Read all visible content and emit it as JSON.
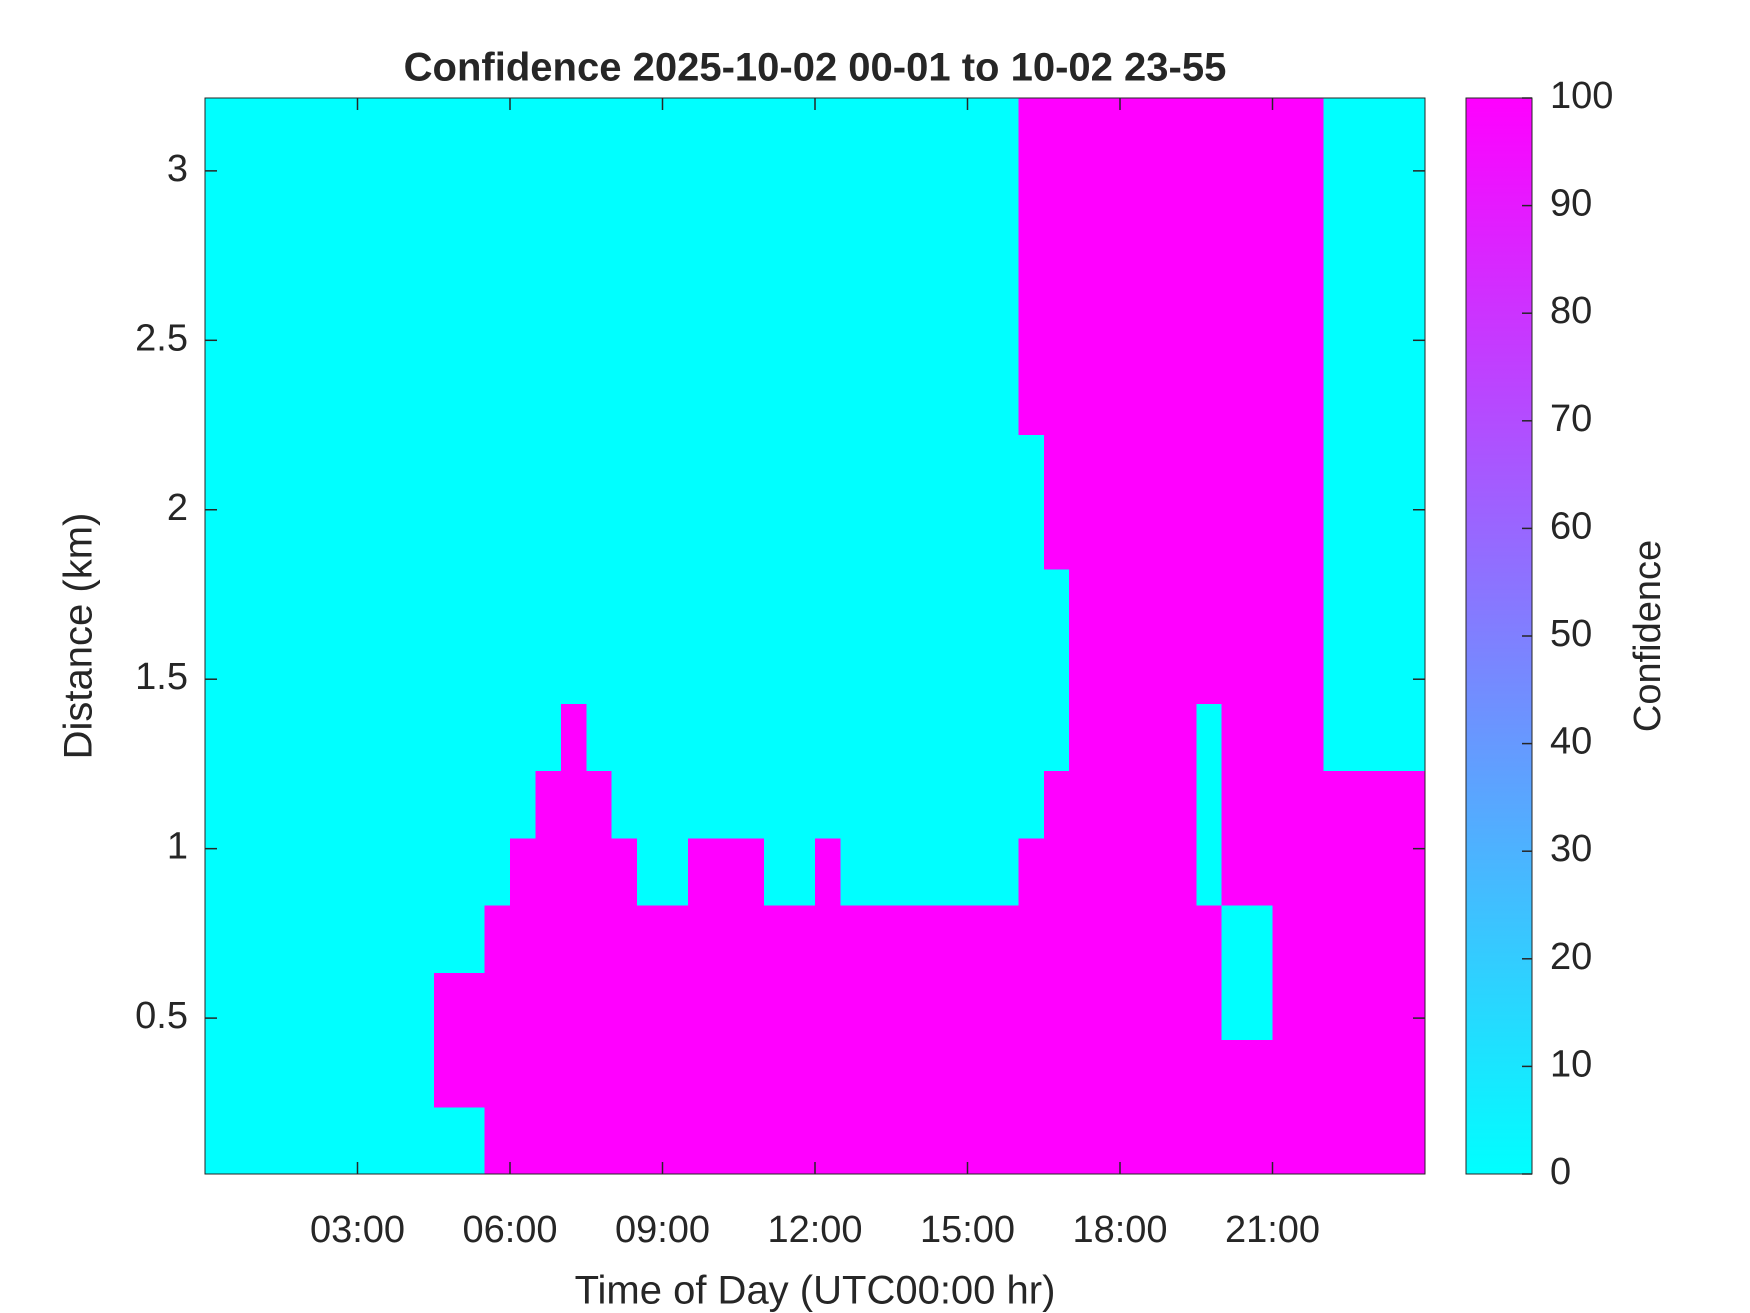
{
  "chart_data": {
    "type": "heatmap",
    "title": "Confidence 2025-10-02 00-01 to 10-02 23-55",
    "x_label": "Time of Day (UTC00:00 hr)",
    "y_label": "Distance (km)",
    "colorbar_label": "Confidence",
    "xlim": [
      0,
      24
    ],
    "ylim": [
      0.04,
      3.215
    ],
    "xticks": [
      {
        "value": 3,
        "label": "03:00"
      },
      {
        "value": 6,
        "label": "06:00"
      },
      {
        "value": 9,
        "label": "09:00"
      },
      {
        "value": 12,
        "label": "12:00"
      },
      {
        "value": 15,
        "label": "15:00"
      },
      {
        "value": 18,
        "label": "18:00"
      },
      {
        "value": 21,
        "label": "21:00"
      }
    ],
    "yticks": [
      0.5,
      1,
      1.5,
      2,
      2.5,
      3
    ],
    "clim": [
      0,
      100
    ],
    "cticks": [
      0,
      10,
      20,
      30,
      40,
      50,
      60,
      70,
      80,
      90,
      100
    ],
    "colormap": [
      "#00ffff",
      "#ff00ff"
    ],
    "z": [
      [
        0,
        0,
        0,
        0,
        0,
        0,
        0,
        0,
        0,
        0,
        0,
        100,
        100,
        100,
        100,
        100,
        100,
        100,
        100,
        100,
        100,
        100,
        100,
        100,
        100,
        100,
        100,
        100,
        100,
        100,
        100,
        100,
        100,
        100,
        100,
        100,
        100,
        100,
        100,
        100,
        100,
        100,
        100,
        100,
        100,
        100,
        100,
        100
      ],
      [
        0,
        0,
        0,
        0,
        0,
        0,
        0,
        0,
        0,
        100,
        100,
        100,
        100,
        100,
        100,
        100,
        100,
        100,
        100,
        100,
        100,
        100,
        100,
        100,
        100,
        100,
        100,
        100,
        100,
        100,
        100,
        100,
        100,
        100,
        100,
        100,
        100,
        100,
        100,
        100,
        100,
        100,
        100,
        100,
        100,
        100,
        100,
        100
      ],
      [
        0,
        0,
        0,
        0,
        0,
        0,
        0,
        0,
        0,
        100,
        100,
        100,
        100,
        100,
        100,
        100,
        100,
        100,
        100,
        100,
        100,
        100,
        100,
        100,
        100,
        100,
        100,
        100,
        100,
        100,
        100,
        100,
        100,
        100,
        100,
        100,
        100,
        100,
        100,
        100,
        0,
        0,
        100,
        100,
        100,
        100,
        100,
        100
      ],
      [
        0,
        0,
        0,
        0,
        0,
        0,
        0,
        0,
        0,
        0,
        0,
        100,
        100,
        100,
        100,
        100,
        100,
        100,
        100,
        100,
        100,
        100,
        100,
        100,
        100,
        100,
        100,
        100,
        100,
        100,
        100,
        100,
        100,
        100,
        100,
        100,
        100,
        100,
        100,
        100,
        0,
        0,
        100,
        100,
        100,
        100,
        100,
        100
      ],
      [
        0,
        0,
        0,
        0,
        0,
        0,
        0,
        0,
        0,
        0,
        0,
        0,
        100,
        100,
        100,
        100,
        100,
        0,
        0,
        100,
        100,
        100,
        0,
        0,
        100,
        0,
        0,
        0,
        0,
        0,
        0,
        0,
        100,
        100,
        100,
        100,
        100,
        100,
        100,
        0,
        100,
        100,
        100,
        100,
        100,
        100,
        100,
        100
      ],
      [
        0,
        0,
        0,
        0,
        0,
        0,
        0,
        0,
        0,
        0,
        0,
        0,
        0,
        100,
        100,
        100,
        0,
        0,
        0,
        0,
        0,
        0,
        0,
        0,
        0,
        0,
        0,
        0,
        0,
        0,
        0,
        0,
        0,
        100,
        100,
        100,
        100,
        100,
        100,
        0,
        100,
        100,
        100,
        100,
        100,
        100,
        100,
        100
      ],
      [
        0,
        0,
        0,
        0,
        0,
        0,
        0,
        0,
        0,
        0,
        0,
        0,
        0,
        0,
        100,
        0,
        0,
        0,
        0,
        0,
        0,
        0,
        0,
        0,
        0,
        0,
        0,
        0,
        0,
        0,
        0,
        0,
        0,
        0,
        100,
        100,
        100,
        100,
        100,
        0,
        100,
        100,
        100,
        100,
        0,
        0,
        0,
        0
      ],
      [
        0,
        0,
        0,
        0,
        0,
        0,
        0,
        0,
        0,
        0,
        0,
        0,
        0,
        0,
        0,
        0,
        0,
        0,
        0,
        0,
        0,
        0,
        0,
        0,
        0,
        0,
        0,
        0,
        0,
        0,
        0,
        0,
        0,
        0,
        100,
        100,
        100,
        100,
        100,
        100,
        100,
        100,
        100,
        100,
        0,
        0,
        0,
        0
      ],
      [
        0,
        0,
        0,
        0,
        0,
        0,
        0,
        0,
        0,
        0,
        0,
        0,
        0,
        0,
        0,
        0,
        0,
        0,
        0,
        0,
        0,
        0,
        0,
        0,
        0,
        0,
        0,
        0,
        0,
        0,
        0,
        0,
        0,
        0,
        100,
        100,
        100,
        100,
        100,
        100,
        100,
        100,
        100,
        100,
        0,
        0,
        0,
        0
      ],
      [
        0,
        0,
        0,
        0,
        0,
        0,
        0,
        0,
        0,
        0,
        0,
        0,
        0,
        0,
        0,
        0,
        0,
        0,
        0,
        0,
        0,
        0,
        0,
        0,
        0,
        0,
        0,
        0,
        0,
        0,
        0,
        0,
        0,
        100,
        100,
        100,
        100,
        100,
        100,
        100,
        100,
        100,
        100,
        100,
        0,
        0,
        0,
        0
      ],
      [
        0,
        0,
        0,
        0,
        0,
        0,
        0,
        0,
        0,
        0,
        0,
        0,
        0,
        0,
        0,
        0,
        0,
        0,
        0,
        0,
        0,
        0,
        0,
        0,
        0,
        0,
        0,
        0,
        0,
        0,
        0,
        0,
        0,
        100,
        100,
        100,
        100,
        100,
        100,
        100,
        100,
        100,
        100,
        100,
        0,
        0,
        0,
        0
      ],
      [
        0,
        0,
        0,
        0,
        0,
        0,
        0,
        0,
        0,
        0,
        0,
        0,
        0,
        0,
        0,
        0,
        0,
        0,
        0,
        0,
        0,
        0,
        0,
        0,
        0,
        0,
        0,
        0,
        0,
        0,
        0,
        0,
        100,
        100,
        100,
        100,
        100,
        100,
        100,
        100,
        100,
        100,
        100,
        100,
        0,
        0,
        0,
        0
      ],
      [
        0,
        0,
        0,
        0,
        0,
        0,
        0,
        0,
        0,
        0,
        0,
        0,
        0,
        0,
        0,
        0,
        0,
        0,
        0,
        0,
        0,
        0,
        0,
        0,
        0,
        0,
        0,
        0,
        0,
        0,
        0,
        0,
        100,
        100,
        100,
        100,
        100,
        100,
        100,
        100,
        100,
        100,
        100,
        100,
        0,
        0,
        0,
        0
      ],
      [
        0,
        0,
        0,
        0,
        0,
        0,
        0,
        0,
        0,
        0,
        0,
        0,
        0,
        0,
        0,
        0,
        0,
        0,
        0,
        0,
        0,
        0,
        0,
        0,
        0,
        0,
        0,
        0,
        0,
        0,
        0,
        0,
        100,
        100,
        100,
        100,
        100,
        100,
        100,
        100,
        100,
        100,
        100,
        100,
        0,
        0,
        0,
        0
      ],
      [
        0,
        0,
        0,
        0,
        0,
        0,
        0,
        0,
        0,
        0,
        0,
        0,
        0,
        0,
        0,
        0,
        0,
        0,
        0,
        0,
        0,
        0,
        0,
        0,
        0,
        0,
        0,
        0,
        0,
        0,
        0,
        0,
        100,
        100,
        100,
        100,
        100,
        100,
        100,
        100,
        100,
        100,
        100,
        100,
        0,
        0,
        0,
        0
      ],
      [
        0,
        0,
        0,
        0,
        0,
        0,
        0,
        0,
        0,
        0,
        0,
        0,
        0,
        0,
        0,
        0,
        0,
        0,
        0,
        0,
        0,
        0,
        0,
        0,
        0,
        0,
        0,
        0,
        0,
        0,
        0,
        0,
        100,
        100,
        100,
        100,
        100,
        100,
        100,
        100,
        100,
        100,
        100,
        100,
        0,
        0,
        0,
        0
      ]
    ]
  }
}
